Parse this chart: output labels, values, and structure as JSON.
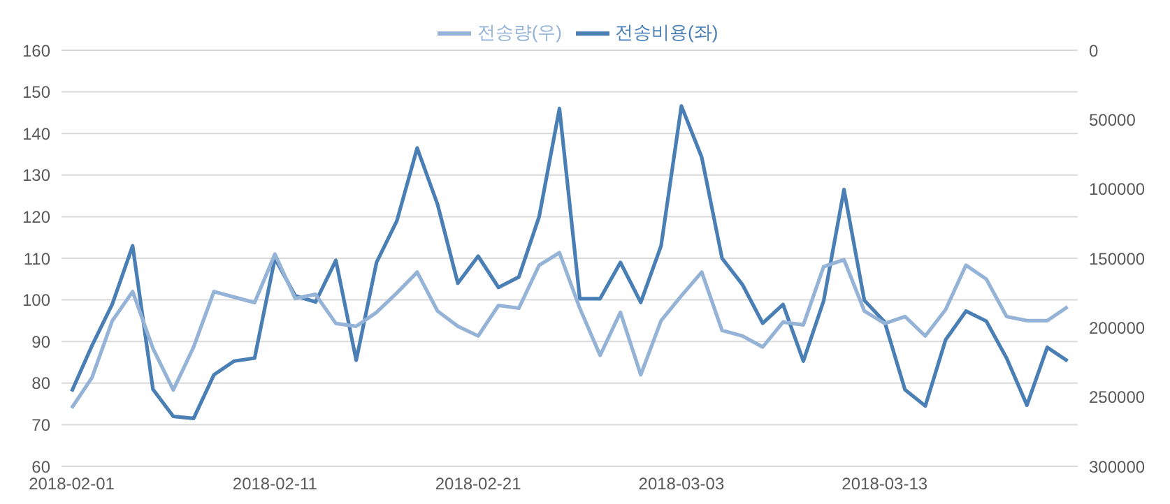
{
  "chart_data": {
    "type": "line",
    "x": [
      "2018-02-01",
      "2018-02-02",
      "2018-02-03",
      "2018-02-04",
      "2018-02-05",
      "2018-02-06",
      "2018-02-07",
      "2018-02-08",
      "2018-02-09",
      "2018-02-10",
      "2018-02-11",
      "2018-02-12",
      "2018-02-13",
      "2018-02-14",
      "2018-02-15",
      "2018-02-16",
      "2018-02-17",
      "2018-02-18",
      "2018-02-19",
      "2018-02-20",
      "2018-02-21",
      "2018-02-22",
      "2018-02-23",
      "2018-02-24",
      "2018-02-25",
      "2018-02-26",
      "2018-02-27",
      "2018-02-28",
      "2018-03-01",
      "2018-03-02",
      "2018-03-03",
      "2018-03-04",
      "2018-03-05",
      "2018-03-06",
      "2018-03-07",
      "2018-03-08",
      "2018-03-09",
      "2018-03-10",
      "2018-03-11",
      "2018-03-12",
      "2018-03-13",
      "2018-03-14",
      "2018-03-15",
      "2018-03-16",
      "2018-03-17",
      "2018-03-18",
      "2018-03-19",
      "2018-03-20",
      "2018-03-21",
      "2018-03-22"
    ],
    "series": [
      {
        "name": "전송비용(좌)",
        "color": "#4a7fb5",
        "values": [
          78,
          89,
          99,
          113,
          78.5,
          72,
          71.5,
          82,
          85.3,
          86,
          110,
          101,
          99.5,
          109.5,
          85.5,
          109,
          119,
          136.5,
          123,
          104,
          110.5,
          103,
          105.5,
          120,
          146,
          100.3,
          100.3,
          109,
          99.4,
          113,
          146.6,
          134.3,
          110,
          103.7,
          94.4,
          98.9,
          85.3,
          99.8,
          126.5,
          99.9,
          94.7,
          78.4,
          74.5,
          90.4,
          97.3,
          94.9,
          86,
          74.7,
          88.6,
          85.3
        ]
      },
      {
        "name": "전송량(우)",
        "color": "#95b3d7",
        "axis": "y2",
        "values": [
          258000,
          236000,
          195000,
          174000,
          215000,
          245000,
          214000,
          174000,
          178000,
          182000,
          147000,
          179000,
          176000,
          197000,
          199000,
          189000,
          175000,
          160000,
          188000,
          199000,
          206000,
          184000,
          186000,
          155000,
          146000,
          186000,
          220000,
          189000,
          234000,
          195000,
          177000,
          160000,
          202000,
          206000,
          214000,
          196000,
          198000,
          156000,
          151000,
          188000,
          197000,
          192000,
          206000,
          187000,
          155000,
          165000,
          192000,
          195000,
          195000,
          185000
        ]
      }
    ],
    "xlim": [
      "2018-01-31T12:00",
      "2018-03-22T12:00"
    ],
    "xticks": [
      "2018-02-01",
      "2018-02-11",
      "2018-02-21",
      "2018-03-03",
      "2018-03-13"
    ],
    "ylim": [
      60,
      160
    ],
    "yticks": [
      60,
      70,
      80,
      90,
      100,
      110,
      120,
      130,
      140,
      150,
      160
    ],
    "y2lim": [
      300000,
      0
    ],
    "y2ticks": [
      0,
      50000,
      100000,
      150000,
      200000,
      250000,
      300000
    ],
    "grid": "y",
    "legend": "top",
    "marker": "none",
    "line_style": "solid"
  }
}
